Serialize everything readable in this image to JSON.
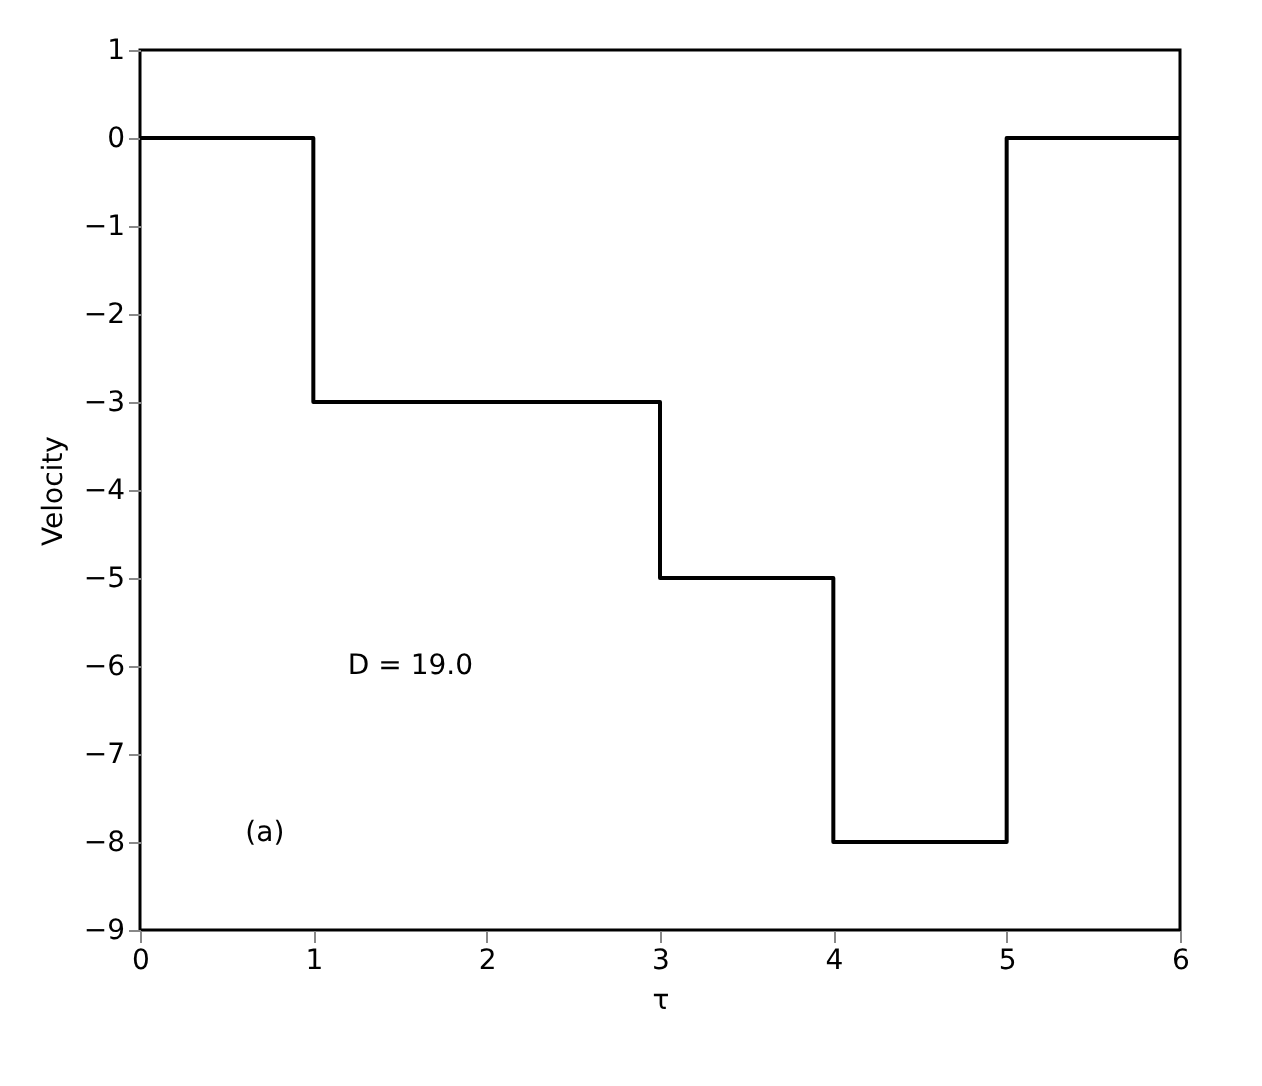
{
  "chart_data": {
    "type": "step",
    "xlabel": "τ",
    "ylabel": "Velocity",
    "x": [
      0,
      1,
      3,
      4,
      5,
      6
    ],
    "values": [
      0,
      -3,
      -5,
      -8,
      0,
      0
    ],
    "color": "#000000",
    "xlim": [
      0,
      6
    ],
    "xticks": [
      0,
      1,
      2,
      3,
      4,
      5,
      6
    ],
    "ylim": [
      -9,
      1
    ],
    "yticks": [
      -9,
      -8,
      -7,
      -6,
      -5,
      -4,
      -3,
      -2,
      -1,
      0,
      1
    ],
    "annotations": [
      "(a)",
      "D = 19.0"
    ],
    "grid": false
  }
}
